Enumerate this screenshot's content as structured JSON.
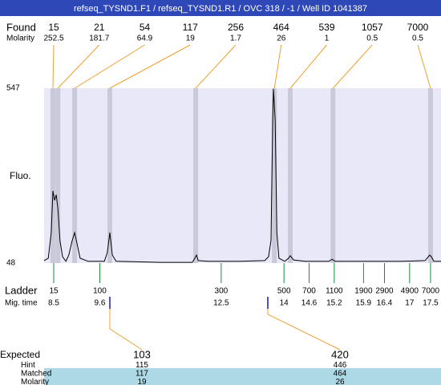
{
  "header": {
    "title": "refseq_TYSND1.F1 / refseq_TYSND1.R1 / OVC 318 / -1 / Well ID 1041387"
  },
  "found": {
    "label": "Found",
    "molarity_label": "Molarity",
    "sizes": [
      15,
      21,
      54,
      117,
      256,
      464,
      539,
      1057,
      7000
    ],
    "molarity": [
      252.5,
      181.7,
      64.9,
      19,
      1.7,
      26,
      1,
      0.5,
      0.5
    ],
    "times": [
      8.48,
      8.6,
      9.0,
      9.84,
      11.89,
      13.77,
      14.15,
      15.17,
      17.5
    ]
  },
  "chart_data": {
    "type": "line",
    "y_label": "Fluo.",
    "color": "#000000",
    "band_color": "#c9c9d9",
    "background": "#e8e8f8",
    "xlim": [
      8.27,
      17.75
    ],
    "ylim": [
      48,
      547
    ],
    "yticks": [
      48,
      547
    ],
    "x": [
      8.27,
      8.37,
      8.44,
      8.48,
      8.52,
      8.56,
      8.6,
      8.65,
      8.71,
      8.79,
      8.86,
      8.94,
      9.0,
      9.06,
      9.13,
      9.32,
      9.71,
      9.78,
      9.84,
      9.9,
      9.99,
      11.05,
      11.81,
      11.87,
      11.91,
      11.95,
      12.2,
      12.96,
      13.54,
      13.63,
      13.69,
      13.73,
      13.75,
      13.79,
      13.83,
      13.88,
      14.02,
      14.11,
      14.15,
      14.23,
      14.5,
      15.07,
      15.15,
      15.22,
      16.8,
      17.37,
      17.48,
      17.52,
      17.58,
      17.75
    ],
    "values": [
      55,
      62,
      135,
      254,
      227,
      243,
      204,
      112,
      66,
      53,
      71,
      112,
      135,
      101,
      62,
      53,
      53,
      78,
      135,
      71,
      53,
      50,
      50,
      62,
      71,
      55,
      53,
      53,
      55,
      66,
      112,
      455,
      545,
      455,
      135,
      62,
      53,
      62,
      69,
      57,
      53,
      53,
      59,
      53,
      53,
      55,
      71,
      66,
      53,
      53
    ]
  },
  "ladder": {
    "label": "Ladder",
    "time_label": "Mig. time",
    "sizes": [
      15,
      100,
      300,
      500,
      700,
      1100,
      1900,
      2900,
      4900,
      7000
    ],
    "times": [
      8.5,
      9.6,
      12.5,
      14,
      14.6,
      15.2,
      15.9,
      16.4,
      17,
      17.5
    ]
  },
  "expected": {
    "rows": [
      [
        "Expected",
        103,
        420
      ],
      [
        "Hint",
        115,
        446
      ],
      [
        "Matched",
        117,
        464
      ],
      [
        "Molarity",
        19,
        26
      ]
    ]
  }
}
